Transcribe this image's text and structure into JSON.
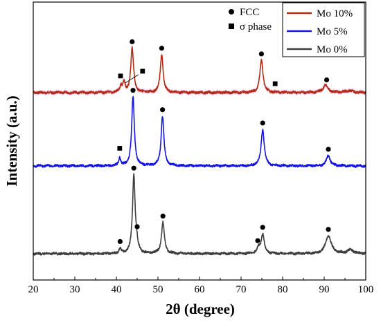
{
  "chart_data": {
    "type": "line",
    "title": "",
    "xlabel": "2θ (degree)",
    "ylabel": "Intensity (a.u.)",
    "xlim": [
      20,
      100
    ],
    "x_ticks": [
      20,
      30,
      40,
      50,
      60,
      70,
      80,
      90,
      100
    ],
    "y_ticks_labeled": false,
    "grid": false,
    "legend": {
      "position": "top-right",
      "entries": [
        "Mo 10%",
        "Mo 5%",
        "Mo 0%"
      ]
    },
    "marker_legend": [
      {
        "symbol": "circle",
        "label": "FCC"
      },
      {
        "symbol": "square",
        "label": "σ phase"
      }
    ],
    "colors": {
      "Mo 10%": "#b22a14",
      "Mo 5%": "#1414e0",
      "Mo 0%": "#3c3c3c",
      "highlight": "#f6c6ec"
    },
    "series": [
      {
        "name": "Mo 10%",
        "peaks": [
          {
            "x": 41.1,
            "h": 0.1,
            "w": 0.3
          },
          {
            "x": 41.8,
            "h": 0.14,
            "w": 0.3
          },
          {
            "x": 43.8,
            "h": 0.64,
            "w": 0.4
          },
          {
            "x": 50.9,
            "h": 0.55,
            "w": 0.4
          },
          {
            "x": 74.9,
            "h": 0.47,
            "w": 0.45
          },
          {
            "x": 90.3,
            "h": 0.11,
            "w": 0.7
          },
          {
            "x": 96.0,
            "h": 0.03,
            "w": 1.0
          }
        ],
        "fcc_markers": [
          43.8,
          50.9,
          74.9,
          90.6
        ],
        "sigma_markers": [
          41.0,
          46.3,
          78.2
        ]
      },
      {
        "name": "Mo 5%",
        "peaks": [
          {
            "x": 40.8,
            "h": 0.12,
            "w": 0.28
          },
          {
            "x": 44.0,
            "h": 1.0,
            "w": 0.38
          },
          {
            "x": 51.1,
            "h": 0.72,
            "w": 0.4
          },
          {
            "x": 75.2,
            "h": 0.53,
            "w": 0.45
          },
          {
            "x": 91.0,
            "h": 0.15,
            "w": 0.55
          }
        ],
        "fcc_markers": [
          44.0,
          51.1,
          75.2,
          91.0
        ],
        "sigma_markers": [
          40.8
        ]
      },
      {
        "name": "Mo 0%",
        "peaks": [
          {
            "x": 40.9,
            "h": 0.07,
            "w": 0.3
          },
          {
            "x": 44.2,
            "h": 1.13,
            "w": 0.38
          },
          {
            "x": 44.9,
            "h": 0.1,
            "w": 0.3
          },
          {
            "x": 51.2,
            "h": 0.45,
            "w": 0.42
          },
          {
            "x": 74.2,
            "h": 0.08,
            "w": 0.4
          },
          {
            "x": 75.2,
            "h": 0.28,
            "w": 0.45
          },
          {
            "x": 91.0,
            "h": 0.26,
            "w": 0.8
          },
          {
            "x": 96.3,
            "h": 0.05,
            "w": 1.0
          }
        ],
        "fcc_markers": [
          44.2,
          51.2,
          75.2,
          91.0,
          40.9,
          45.0,
          74.0
        ],
        "sigma_markers": []
      }
    ]
  }
}
